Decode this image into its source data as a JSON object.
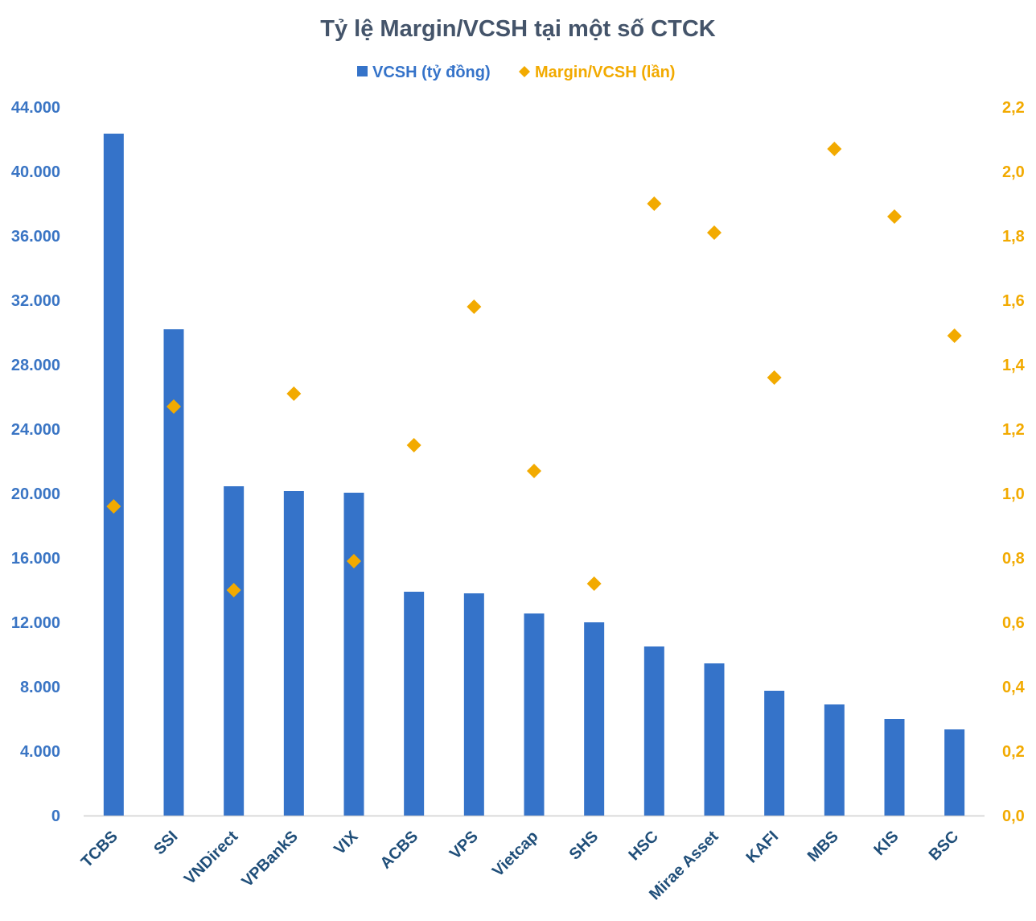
{
  "chart_data": {
    "type": "bar",
    "title": "Tỷ lệ Margin/VCSH tại một số CTCK",
    "categories": [
      "TCBS",
      "SSI",
      "VNDirect",
      "VPBankS",
      "VIX",
      "ACBS",
      "VPS",
      "Vietcap",
      "SHS",
      "HSC",
      "Mirae Asset",
      "KAFI",
      "MBS",
      "KIS",
      "BSC"
    ],
    "series": [
      {
        "name": "VCSH (tỷ đồng)",
        "type": "bar",
        "axis": "left",
        "color": "#3573C9",
        "values": [
          42350,
          30200,
          20450,
          20150,
          20050,
          13900,
          13800,
          12550,
          12000,
          10500,
          9450,
          7750,
          6900,
          6000,
          5350
        ]
      },
      {
        "name": "Margin/VCSH (lần)",
        "type": "scatter",
        "axis": "right",
        "color": "#F2AA00",
        "values": [
          0.96,
          1.27,
          0.7,
          1.31,
          0.79,
          1.15,
          1.58,
          1.07,
          0.72,
          1.9,
          1.81,
          1.36,
          2.07,
          1.86,
          1.49
        ]
      }
    ],
    "yleft": {
      "lim": [
        0,
        44000
      ],
      "ticks": [
        "0",
        "4.000",
        "8.000",
        "12.000",
        "16.000",
        "20.000",
        "24.000",
        "28.000",
        "32.000",
        "36.000",
        "40.000",
        "44.000"
      ]
    },
    "yright": {
      "lim": [
        0,
        2.2
      ],
      "ticks": [
        "0,0",
        "0,2",
        "0,4",
        "0,6",
        "0,8",
        "1,0",
        "1,2",
        "1,4",
        "1,6",
        "1,8",
        "2,0",
        "2,2"
      ]
    },
    "legend_position": "top",
    "grid": false
  }
}
